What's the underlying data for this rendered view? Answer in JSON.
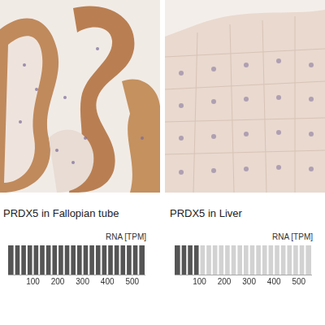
{
  "chart_data": [
    {
      "type": "bar",
      "orientation": "horizontal",
      "title": "PRDX5 in Fallopian tube",
      "x_label": "RNA [TPM]",
      "values": [
        550
      ],
      "color": "#555555",
      "xlim": [
        0,
        550
      ],
      "xticks": [
        100,
        200,
        300,
        400,
        500
      ],
      "grid": false
    },
    {
      "type": "bar",
      "orientation": "horizontal",
      "title": "PRDX5 in Liver",
      "x_label": "RNA [TPM]",
      "values": [
        100
      ],
      "color": "#555555",
      "xlim": [
        0,
        550
      ],
      "xticks": [
        100,
        200,
        300,
        400,
        500
      ],
      "grid": false
    }
  ]
}
